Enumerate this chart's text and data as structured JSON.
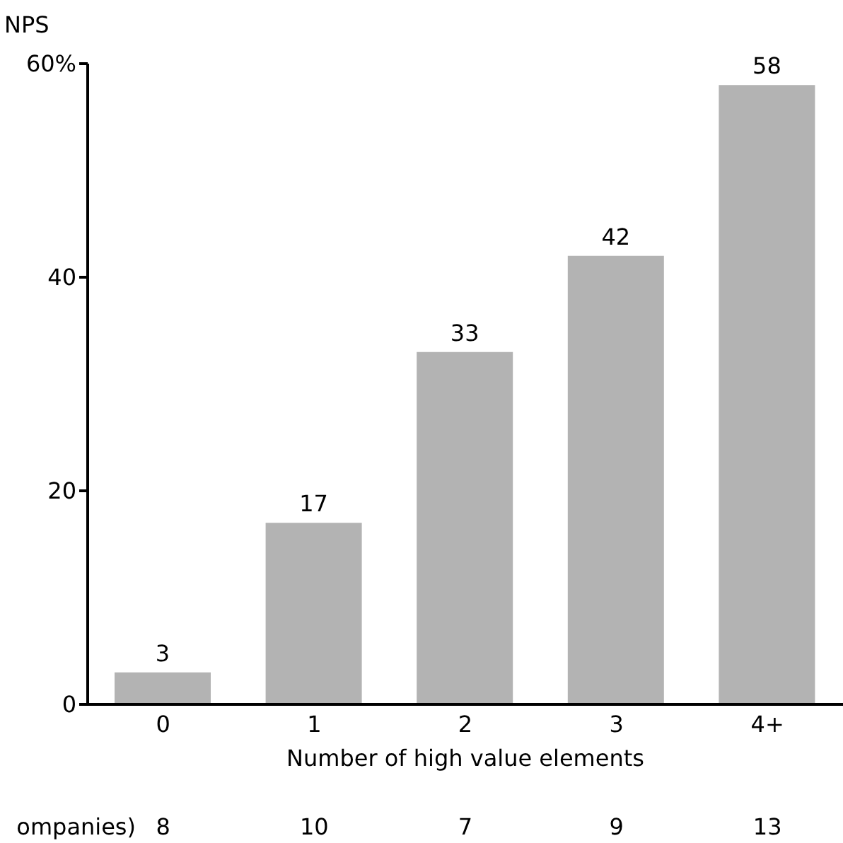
{
  "chart_data": {
    "type": "bar",
    "ylabel": "NPS",
    "xlabel": "Number of high value elements",
    "categories": [
      "0",
      "1",
      "2",
      "3",
      "4+"
    ],
    "values": [
      3,
      17,
      33,
      42,
      58
    ],
    "color": "#b3b3b3",
    "data_labels": true,
    "ylim": [
      0,
      60
    ],
    "yticks": [
      0,
      20,
      40,
      {
        "value": 60,
        "label": "60%"
      }
    ],
    "grid": false,
    "annotations": [
      "ompanies)",
      "8",
      "10",
      "7",
      "9",
      "13"
    ]
  }
}
